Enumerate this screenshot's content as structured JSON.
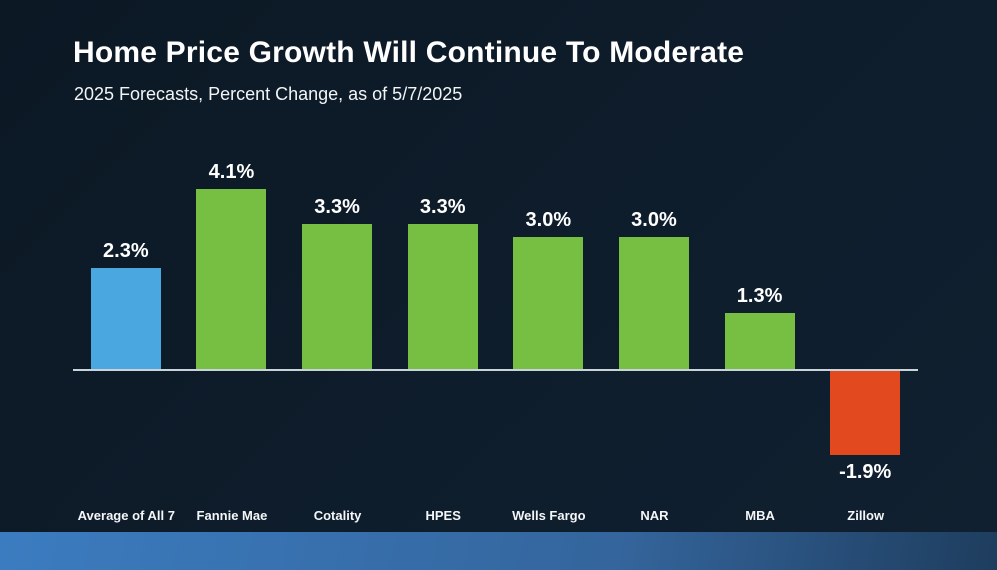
{
  "header": {
    "title": "Home Price Growth Will Continue To Moderate",
    "subtitle": "2025 Forecasts, Percent Change, as of 5/7/2025"
  },
  "colors": {
    "background_dark": "#0c1824",
    "background_light": "#102030",
    "text": "#ffffff",
    "axis_line": "#c9d3da",
    "bar_highlight_blue": "#4aa7e0",
    "bar_positive_green": "#76bf43",
    "bar_negative_orange": "#e2491f",
    "footer_band_left": "#3b7cc0",
    "footer_band_mid": "#34659c",
    "footer_band_right": "#1e3d5e"
  },
  "chart_data": {
    "type": "bar",
    "title": "Home Price Growth Will Continue To Moderate",
    "subtitle": "2025 Forecasts, Percent Change, as of 5/7/2025",
    "categories": [
      "Average of All 7",
      "Fannie Mae",
      "Cotality",
      "HPES",
      "Wells Fargo",
      "NAR",
      "MBA",
      "Zillow"
    ],
    "values": [
      2.3,
      4.1,
      3.3,
      3.3,
      3.0,
      3.0,
      1.3,
      -1.9
    ],
    "value_labels": [
      "2.3%",
      "4.1%",
      "3.3%",
      "3.3%",
      "3.0%",
      "3.0%",
      "1.3%",
      "-1.9%"
    ],
    "bar_colors": [
      "#4aa7e0",
      "#76bf43",
      "#76bf43",
      "#76bf43",
      "#76bf43",
      "#76bf43",
      "#76bf43",
      "#e2491f"
    ],
    "xlabel": "",
    "ylabel": "",
    "ylim": [
      -2.5,
      4.6
    ],
    "baseline": 0,
    "grid": false,
    "legend": "none",
    "value_labels_position": "outside-end",
    "orientation": "vertical"
  }
}
